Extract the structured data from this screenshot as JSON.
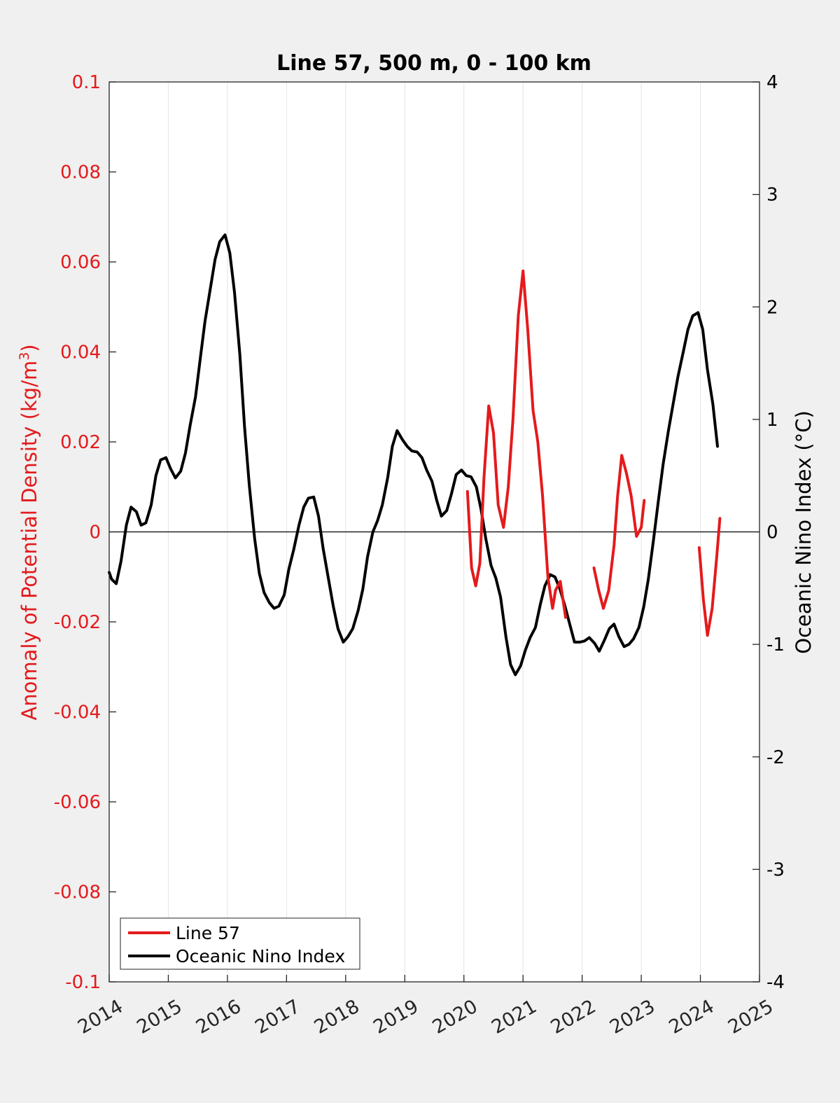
{
  "chart_data": {
    "type": "line",
    "title": "Line 57, 500 m, 0 - 100 km",
    "xlim": [
      2014,
      2025
    ],
    "x_ticks": [
      "2014",
      "2015",
      "2016",
      "2017",
      "2018",
      "2019",
      "2020",
      "2021",
      "2022",
      "2023",
      "2024",
      "2025"
    ],
    "left_axis": {
      "label_prefix": "Anomaly of Potential Density (kg/m",
      "label_sup": "3",
      "label_suffix": ")",
      "ylim": [
        -0.1,
        0.1
      ],
      "ticks": [
        0.1,
        0.08,
        0.06,
        0.04,
        0.02,
        0,
        -0.02,
        -0.04,
        -0.06,
        -0.08,
        -0.1
      ],
      "tick_labels": [
        "0.1",
        "0.08",
        "0.06",
        "0.04",
        "0.02",
        "0",
        "-0.02",
        "-0.04",
        "-0.06",
        "-0.08",
        "-0.1"
      ],
      "color": "#e41a1c"
    },
    "right_axis": {
      "label": "Oceanic Nino Index (°C)",
      "ylim": [
        -4,
        4
      ],
      "ticks": [
        4,
        3,
        2,
        1,
        0,
        -1,
        -2,
        -3,
        -4
      ],
      "tick_labels": [
        "4",
        "3",
        "2",
        "1",
        "0",
        "-1",
        "-2",
        "-3",
        "-4"
      ],
      "color": "#000000"
    },
    "grid": "vertical",
    "zero_line": true,
    "legend": {
      "position": "bottom-left",
      "entries": [
        {
          "label": "Line 57",
          "color": "#e41a1c"
        },
        {
          "label": "Oceanic Nino Index",
          "color": "#000000"
        }
      ]
    },
    "series": [
      {
        "name": "Line 57",
        "axis": "left",
        "color": "#e41a1c",
        "segments": [
          [
            [
              2020.06,
              0.009
            ],
            [
              2020.13,
              -0.008
            ],
            [
              2020.2,
              -0.012
            ],
            [
              2020.27,
              -0.007
            ],
            [
              2020.34,
              0.012
            ],
            [
              2020.42,
              0.028
            ],
            [
              2020.5,
              0.022
            ],
            [
              2020.58,
              0.006
            ],
            [
              2020.67,
              0.001
            ],
            [
              2020.75,
              0.01
            ],
            [
              2020.83,
              0.025
            ],
            [
              2020.92,
              0.048
            ],
            [
              2021.0,
              0.058
            ],
            [
              2021.08,
              0.045
            ],
            [
              2021.17,
              0.027
            ],
            [
              2021.25,
              0.02
            ],
            [
              2021.33,
              0.008
            ],
            [
              2021.42,
              -0.01
            ],
            [
              2021.5,
              -0.017
            ],
            [
              2021.55,
              -0.013
            ],
            [
              2021.63,
              -0.011
            ],
            [
              2021.72,
              -0.019
            ]
          ],
          [
            [
              2022.2,
              -0.008
            ],
            [
              2022.28,
              -0.013
            ],
            [
              2022.36,
              -0.017
            ],
            [
              2022.45,
              -0.013
            ],
            [
              2022.54,
              -0.003
            ],
            [
              2022.6,
              0.008
            ],
            [
              2022.67,
              0.017
            ],
            [
              2022.75,
              0.013
            ],
            [
              2022.83,
              0.008
            ],
            [
              2022.92,
              -0.001
            ],
            [
              2023.0,
              0.001
            ],
            [
              2023.05,
              0.007
            ]
          ],
          [
            [
              2023.98,
              -0.0035
            ],
            [
              2024.05,
              -0.015
            ],
            [
              2024.12,
              -0.023
            ],
            [
              2024.2,
              -0.017
            ],
            [
              2024.28,
              -0.005
            ],
            [
              2024.33,
              0.003
            ]
          ]
        ]
      },
      {
        "name": "Oceanic Nino Index",
        "axis": "right",
        "color": "#000000",
        "x": [
          2014.0,
          2014.04,
          2014.12,
          2014.2,
          2014.29,
          2014.37,
          2014.46,
          2014.54,
          2014.62,
          2014.71,
          2014.79,
          2014.87,
          2014.96,
          2015.04,
          2015.12,
          2015.21,
          2015.29,
          2015.37,
          2015.46,
          2015.54,
          2015.62,
          2015.71,
          2015.79,
          2015.87,
          2015.96,
          2016.04,
          2016.12,
          2016.21,
          2016.29,
          2016.37,
          2016.46,
          2016.54,
          2016.62,
          2016.71,
          2016.79,
          2016.87,
          2016.96,
          2017.04,
          2017.12,
          2017.21,
          2017.29,
          2017.37,
          2017.46,
          2017.54,
          2017.62,
          2017.71,
          2017.79,
          2017.87,
          2017.96,
          2018.04,
          2018.12,
          2018.21,
          2018.29,
          2018.37,
          2018.46,
          2018.54,
          2018.62,
          2018.71,
          2018.79,
          2018.87,
          2018.96,
          2019.04,
          2019.12,
          2019.21,
          2019.29,
          2019.37,
          2019.46,
          2019.54,
          2019.62,
          2019.71,
          2019.79,
          2019.87,
          2019.96,
          2020.04,
          2020.12,
          2020.21,
          2020.29,
          2020.37,
          2020.46,
          2020.54,
          2020.62,
          2020.71,
          2020.79,
          2020.87,
          2020.96,
          2021.04,
          2021.12,
          2021.21,
          2021.29,
          2021.37,
          2021.46,
          2021.54,
          2021.62,
          2021.71,
          2021.79,
          2021.87,
          2021.96,
          2022.04,
          2022.12,
          2022.21,
          2022.29,
          2022.37,
          2022.46,
          2022.54,
          2022.62,
          2022.71,
          2022.79,
          2022.87,
          2022.96,
          2023.04,
          2023.12,
          2023.21,
          2023.29,
          2023.37,
          2023.46,
          2023.54,
          2023.62,
          2023.71,
          2023.79,
          2023.87,
          2023.96,
          2024.04,
          2024.12,
          2024.21,
          2024.29
        ],
        "y": [
          -0.36,
          -0.42,
          -0.46,
          -0.26,
          0.06,
          0.22,
          0.18,
          0.06,
          0.08,
          0.24,
          0.5,
          0.64,
          0.66,
          0.56,
          0.48,
          0.54,
          0.7,
          0.95,
          1.2,
          1.54,
          1.87,
          2.16,
          2.42,
          2.58,
          2.64,
          2.48,
          2.13,
          1.58,
          0.93,
          0.41,
          -0.06,
          -0.37,
          -0.54,
          -0.63,
          -0.68,
          -0.66,
          -0.56,
          -0.33,
          -0.16,
          0.06,
          0.22,
          0.3,
          0.31,
          0.14,
          -0.15,
          -0.42,
          -0.66,
          -0.86,
          -0.98,
          -0.93,
          -0.86,
          -0.7,
          -0.51,
          -0.22,
          0.0,
          0.1,
          0.24,
          0.48,
          0.76,
          0.9,
          0.82,
          0.76,
          0.72,
          0.71,
          0.66,
          0.55,
          0.45,
          0.28,
          0.14,
          0.19,
          0.34,
          0.51,
          0.55,
          0.5,
          0.49,
          0.4,
          0.2,
          -0.06,
          -0.3,
          -0.41,
          -0.58,
          -0.93,
          -1.18,
          -1.27,
          -1.19,
          -1.05,
          -0.94,
          -0.85,
          -0.65,
          -0.48,
          -0.38,
          -0.4,
          -0.5,
          -0.66,
          -0.82,
          -0.98,
          -0.98,
          -0.97,
          -0.94,
          -0.99,
          -1.06,
          -0.97,
          -0.86,
          -0.82,
          -0.93,
          -1.02,
          -1.0,
          -0.95,
          -0.85,
          -0.67,
          -0.42,
          -0.06,
          0.28,
          0.6,
          0.9,
          1.14,
          1.38,
          1.6,
          1.8,
          1.92,
          1.95,
          1.8,
          1.44,
          1.14,
          0.76
        ]
      }
    ]
  }
}
